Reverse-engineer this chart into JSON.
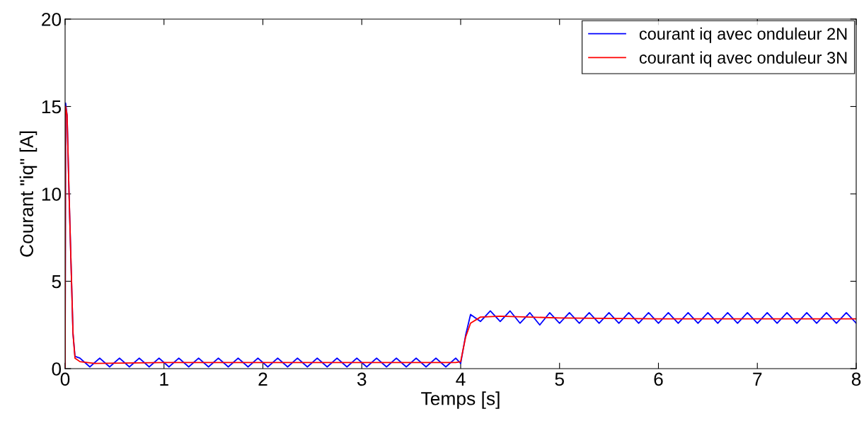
{
  "chart_data": {
    "type": "line",
    "xlabel": "Temps [s]",
    "ylabel": "Courant \"iq\" [A]",
    "xlim": [
      0,
      8
    ],
    "ylim": [
      0,
      20
    ],
    "xticks": [
      0,
      1,
      2,
      3,
      4,
      5,
      6,
      7,
      8
    ],
    "yticks": [
      0,
      5,
      10,
      15,
      20
    ],
    "grid": false,
    "legend": "top right",
    "series": [
      {
        "name": "courant iq avec onduleur 2N",
        "color": "#0000ff",
        "x": [
          0,
          0.005,
          0.02,
          0.04,
          0.06,
          0.08,
          0.1,
          0.15,
          0.25,
          0.35,
          0.45,
          0.55,
          0.65,
          0.75,
          0.85,
          0.95,
          1.05,
          1.15,
          1.25,
          1.35,
          1.45,
          1.55,
          1.65,
          1.75,
          1.85,
          1.95,
          2.05,
          2.15,
          2.25,
          2.35,
          2.45,
          2.55,
          2.65,
          2.75,
          2.85,
          2.95,
          3.05,
          3.15,
          3.25,
          3.35,
          3.45,
          3.55,
          3.65,
          3.75,
          3.85,
          3.95,
          4.0,
          4.05,
          4.1,
          4.2,
          4.3,
          4.4,
          4.5,
          4.6,
          4.7,
          4.8,
          4.9,
          5.0,
          5.1,
          5.2,
          5.3,
          5.4,
          5.5,
          5.6,
          5.7,
          5.8,
          5.9,
          6.0,
          6.1,
          6.2,
          6.3,
          6.4,
          6.5,
          6.6,
          6.7,
          6.8,
          6.9,
          7.0,
          7.1,
          7.2,
          7.3,
          7.4,
          7.5,
          7.6,
          7.7,
          7.8,
          7.9,
          8.0
        ],
        "values": [
          0,
          15.2,
          14.5,
          10,
          6,
          2,
          0.7,
          0.6,
          0.1,
          0.6,
          0.1,
          0.6,
          0.1,
          0.6,
          0.1,
          0.6,
          0.1,
          0.6,
          0.1,
          0.6,
          0.1,
          0.6,
          0.1,
          0.6,
          0.1,
          0.6,
          0.1,
          0.6,
          0.1,
          0.6,
          0.1,
          0.6,
          0.1,
          0.6,
          0.1,
          0.6,
          0.1,
          0.6,
          0.1,
          0.6,
          0.1,
          0.6,
          0.1,
          0.6,
          0.1,
          0.6,
          0.3,
          1.9,
          3.1,
          2.7,
          3.3,
          2.7,
          3.3,
          2.6,
          3.2,
          2.5,
          3.2,
          2.6,
          3.2,
          2.6,
          3.2,
          2.6,
          3.2,
          2.6,
          3.2,
          2.6,
          3.2,
          2.6,
          3.2,
          2.6,
          3.2,
          2.6,
          3.2,
          2.6,
          3.2,
          2.6,
          3.2,
          2.6,
          3.2,
          2.6,
          3.2,
          2.6,
          3.2,
          2.6,
          3.2,
          2.6,
          3.2,
          2.6
        ]
      },
      {
        "name": "courant iq avec onduleur 3N",
        "color": "#ff0000",
        "x": [
          0,
          0.005,
          0.02,
          0.04,
          0.06,
          0.08,
          0.1,
          0.15,
          0.3,
          1,
          2,
          3,
          3.95,
          4.0,
          4.05,
          4.1,
          4.2,
          4.4,
          5,
          6,
          7,
          8
        ],
        "values": [
          0,
          15,
          14.5,
          10,
          6,
          2,
          0.6,
          0.4,
          0.3,
          0.35,
          0.35,
          0.35,
          0.35,
          0.4,
          1.8,
          2.6,
          2.95,
          3.0,
          2.9,
          2.85,
          2.85,
          2.85
        ]
      }
    ]
  }
}
